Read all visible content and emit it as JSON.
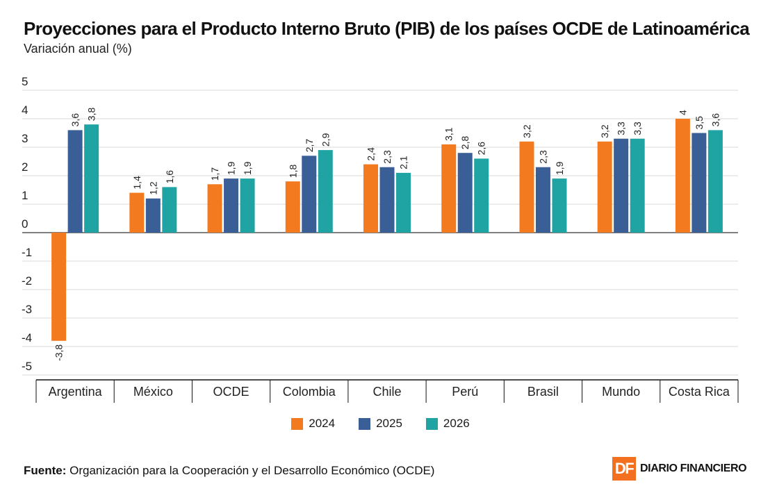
{
  "header": {
    "title": "Proyecciones para el Producto Interno Bruto (PIB) de los países OCDE de Latinoamérica",
    "subtitle": "Variación anual (%)"
  },
  "chart_data": {
    "type": "bar",
    "title": "Proyecciones para el Producto Interno Bruto (PIB) de los países OCDE de Latinoamérica",
    "subtitle": "Variación anual (%)",
    "xlabel": "",
    "ylabel": "Variación anual (%)",
    "ylim": [
      -5,
      5
    ],
    "yticks": [
      5,
      4,
      3,
      2,
      1,
      0,
      -1,
      -2,
      -3,
      -4,
      -5
    ],
    "grid": true,
    "legend_position": "bottom",
    "categories": [
      "Argentina",
      "México",
      "OCDE",
      "Colombia",
      "Chile",
      "Perú",
      "Brasil",
      "Mundo",
      "Costa Rica"
    ],
    "series": [
      {
        "name": "2024",
        "color": "#f47a20",
        "values": [
          -3.8,
          1.4,
          1.7,
          1.8,
          2.4,
          3.1,
          3.2,
          3.2,
          4
        ],
        "labels": [
          "-3,8",
          "1,4",
          "1,7",
          "1,8",
          "2,4",
          "3,1",
          "3,2",
          "3,2",
          "4"
        ]
      },
      {
        "name": "2025",
        "color": "#3a5f96",
        "values": [
          3.6,
          1.2,
          1.9,
          2.7,
          2.3,
          2.8,
          2.3,
          3.3,
          3.5
        ],
        "labels": [
          "3,6",
          "1,2",
          "1,9",
          "2,7",
          "2,3",
          "2,8",
          "2,3",
          "3,3",
          "3,5"
        ]
      },
      {
        "name": "2026",
        "color": "#1fa3a3",
        "values": [
          3.8,
          1.6,
          1.9,
          2.9,
          2.1,
          2.6,
          1.9,
          3.3,
          3.6
        ],
        "labels": [
          "3,8",
          "1,6",
          "1,9",
          "2,9",
          "2,1",
          "2,6",
          "1,9",
          "3,3",
          "3,6"
        ]
      }
    ]
  },
  "legend": [
    {
      "label": "2024",
      "color": "#f47a20"
    },
    {
      "label": "2025",
      "color": "#3a5f96"
    },
    {
      "label": "2026",
      "color": "#1fa3a3"
    }
  ],
  "footer": {
    "source_label": "Fuente:",
    "source_text": "Organización para la Cooperación y el Desarrollo Económico (OCDE)",
    "logo_mark": "DF",
    "logo_text": "DIARIO FINANCIERO"
  }
}
